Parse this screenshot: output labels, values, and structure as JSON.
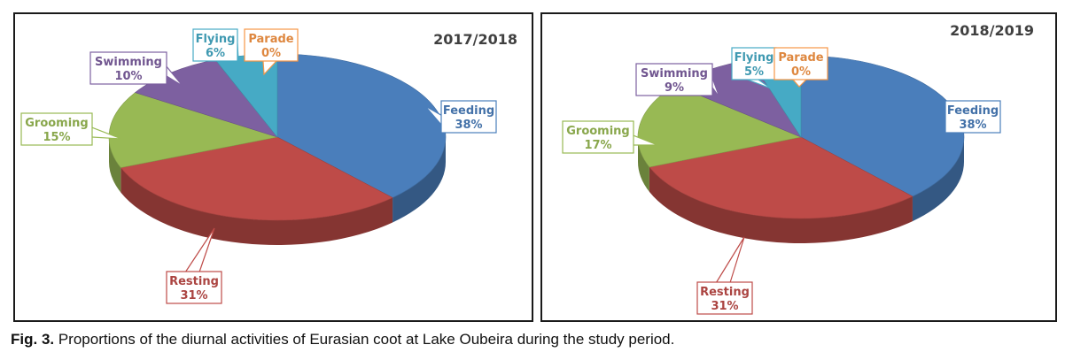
{
  "caption": {
    "number": "Fig. 3.",
    "text": " Proportions of the diurnal activities of Eurasian coot at Lake Oubeira during the study period."
  },
  "chart_data": [
    {
      "type": "pie",
      "title": "2017/2018",
      "categories": [
        "Feeding",
        "Resting",
        "Grooming",
        "Swimming",
        "Flying",
        "Parade"
      ],
      "values": [
        38,
        31,
        15,
        10,
        6,
        0
      ],
      "labels": [
        "38%",
        "31%",
        "15%",
        "10%",
        "6%",
        "0%"
      ],
      "colors": [
        "#4a7ebb",
        "#be4b48",
        "#98b954",
        "#7d60a0",
        "#46aac5",
        "#f79646"
      ]
    },
    {
      "type": "pie",
      "title": "2018/2019",
      "categories": [
        "Feeding",
        "Resting",
        "Grooming",
        "Swimming",
        "Flying",
        "Parade"
      ],
      "values": [
        38,
        31,
        17,
        9,
        5,
        0
      ],
      "labels": [
        "38%",
        "31%",
        "17%",
        "9%",
        "5%",
        "0%"
      ],
      "colors": [
        "#4a7ebb",
        "#be4b48",
        "#98b954",
        "#7d60a0",
        "#46aac5",
        "#f79646"
      ]
    }
  ]
}
